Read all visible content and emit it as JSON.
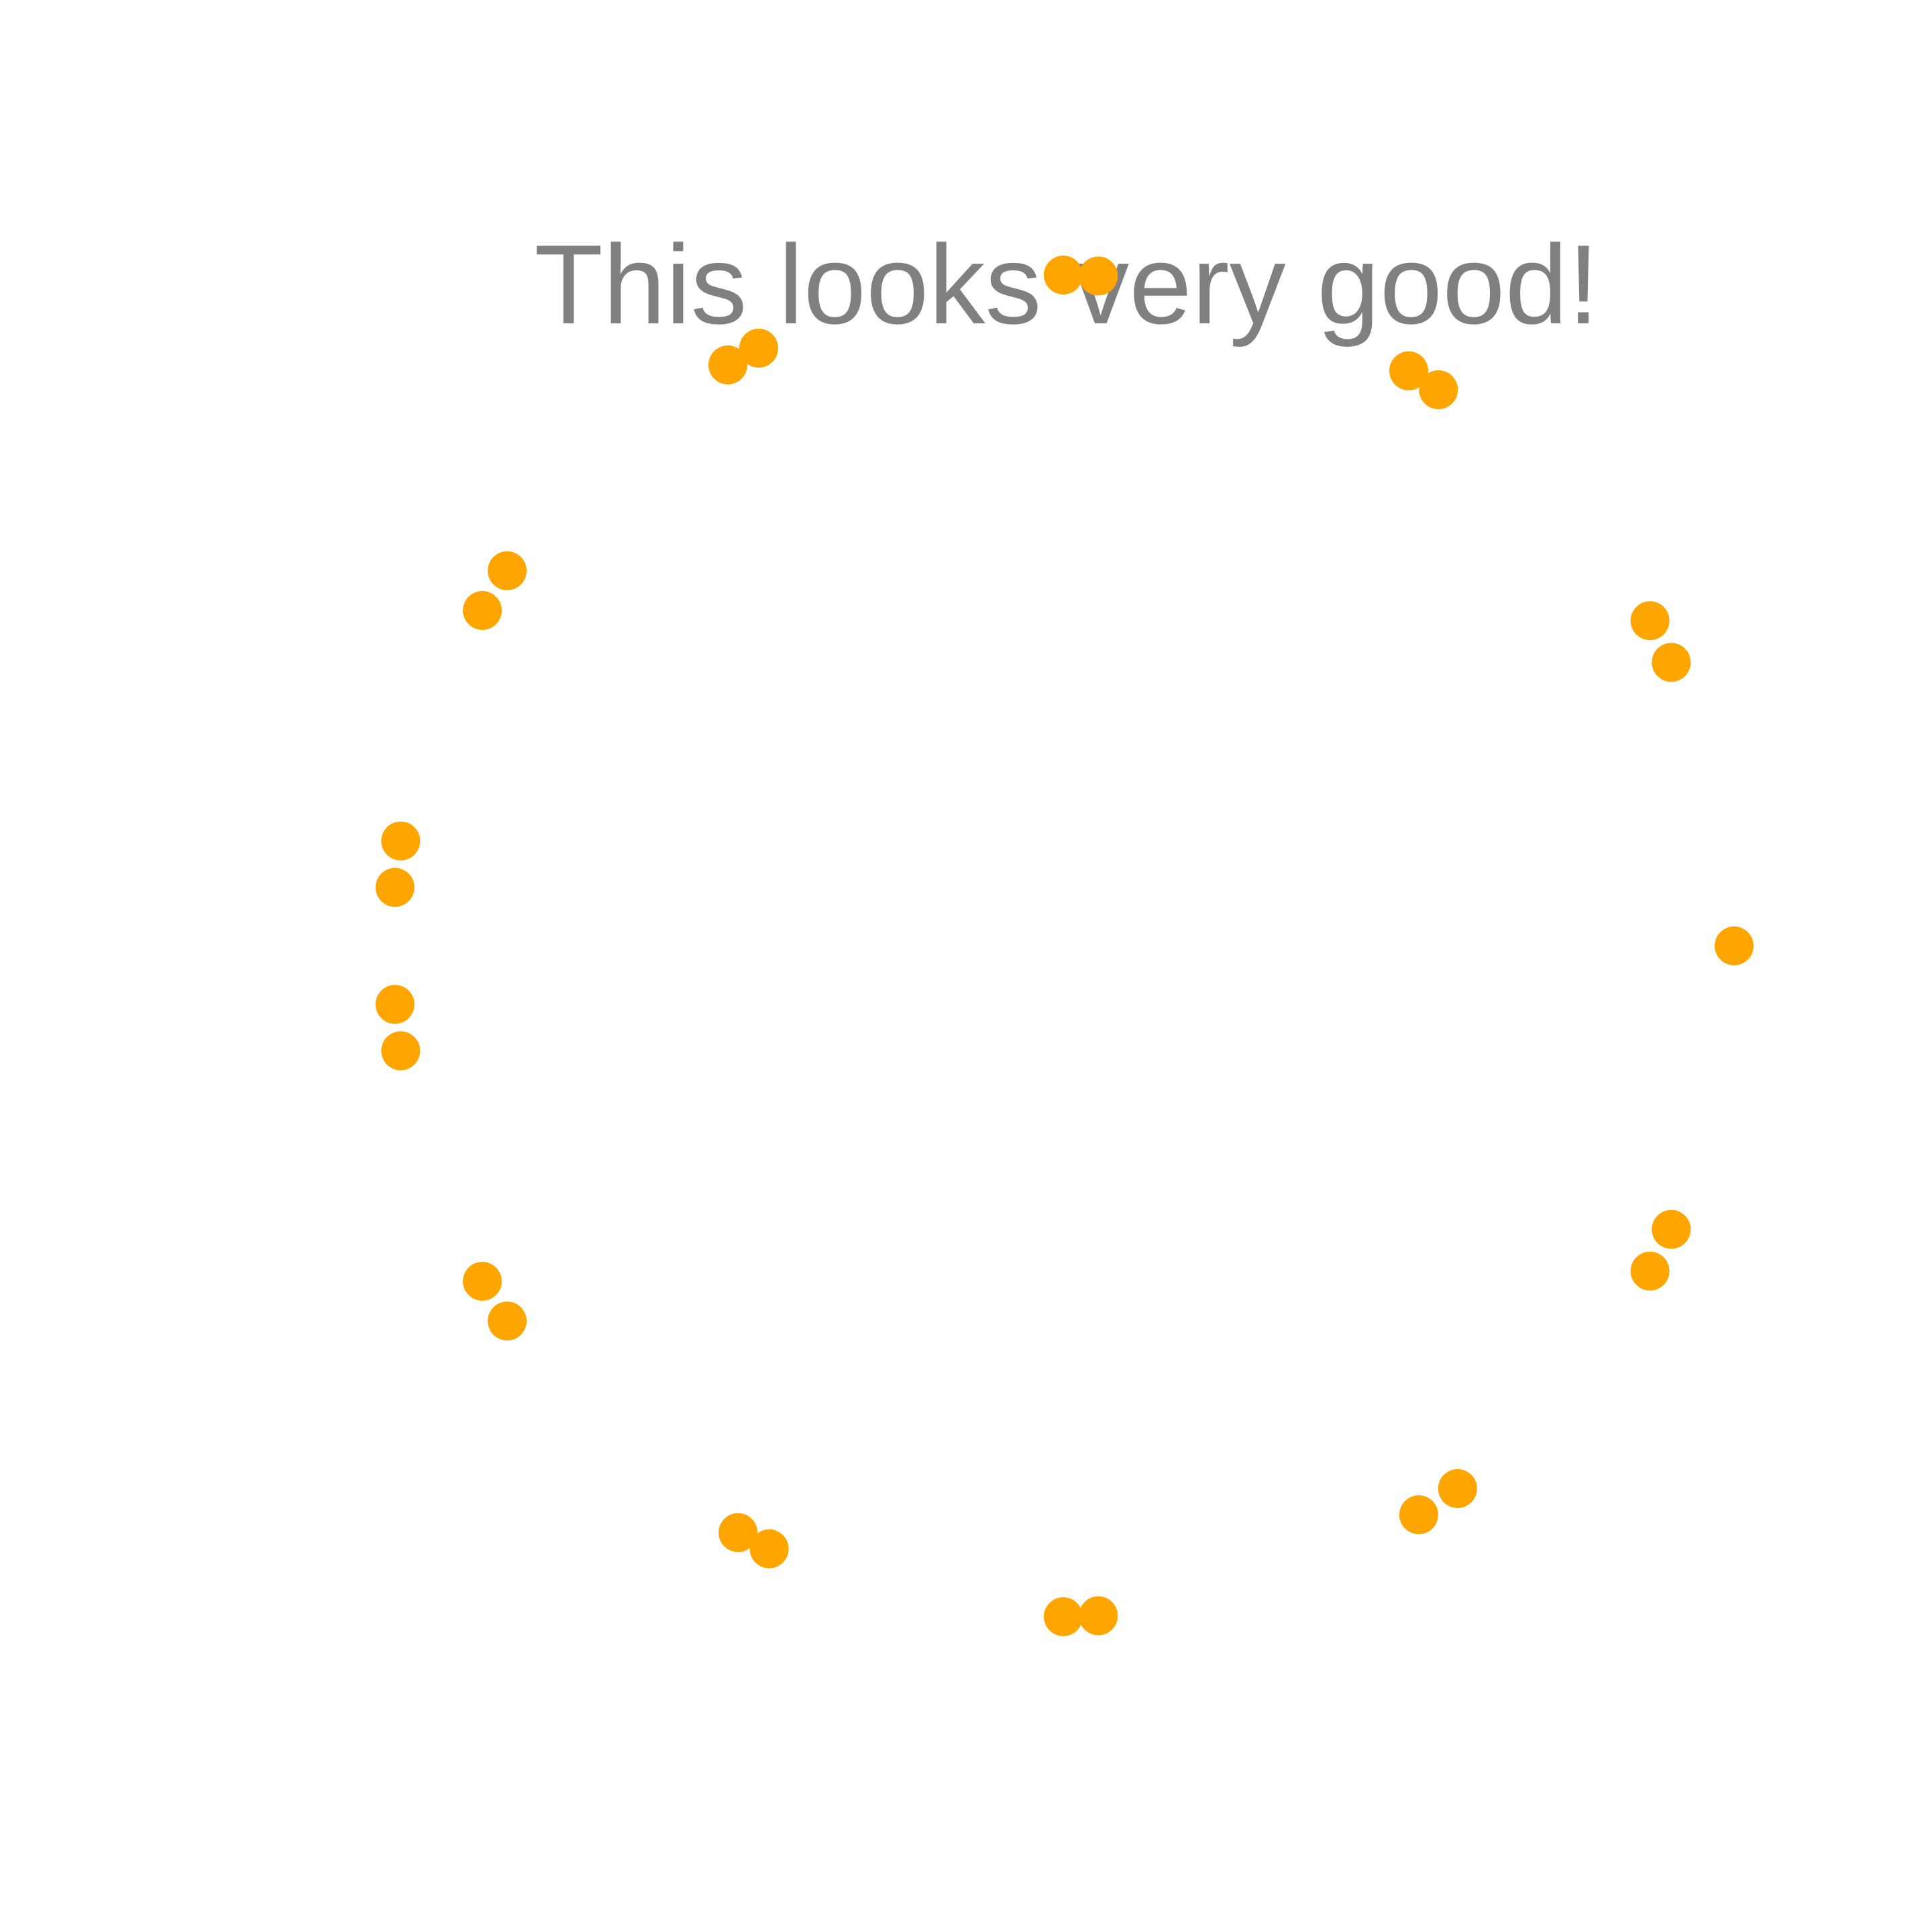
{
  "message": "This looks very good!",
  "loader": {
    "dot_count": 26,
    "gap_after_dot": 13,
    "dot_color": "#FFA500"
  }
}
